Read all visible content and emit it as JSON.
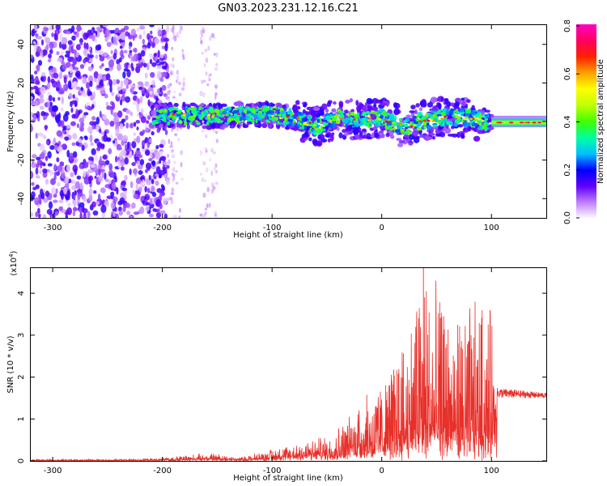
{
  "title": "GN03.2023.231.12.16.C21",
  "colors": {
    "snr_line": "#e8302a",
    "spec_bg": "#ffffff",
    "spec_dense": "#7010e0"
  },
  "chart_data": [
    {
      "type": "heatmap",
      "panel": "spectrogram",
      "xlabel": "Height of straight line (km)",
      "ylabel": "Frequency (Hz)",
      "xlim": [
        -320,
        150
      ],
      "ylim": [
        -50,
        50
      ],
      "xticks": [
        -300,
        -200,
        -100,
        0,
        100
      ],
      "yticks": [
        -40,
        -20,
        0,
        20,
        40
      ],
      "grid": false,
      "description_regions": [
        {
          "x_range": [
            -320,
            -195
          ],
          "freq_range": [
            -50,
            50
          ],
          "amplitude": 0.1
        },
        {
          "x_range": [
            -195,
            -180
          ],
          "freq_range": [
            -50,
            50
          ],
          "amplitude": 0.03
        },
        {
          "x_range": [
            -165,
            -150
          ],
          "freq_range": [
            -50,
            50
          ],
          "amplitude": 0.03
        },
        {
          "x_range": [
            -210,
            100
          ],
          "freq_range": [
            -12,
            12
          ],
          "amplitude": 0.3
        },
        {
          "x_range": [
            100,
            150
          ],
          "freq_range": [
            -3,
            3
          ],
          "amplitude": 0.45
        }
      ],
      "ridge": [
        {
          "x": -205,
          "f": 3
        },
        {
          "x": -170,
          "f": 3
        },
        {
          "x": -140,
          "f": 3
        },
        {
          "x": -110,
          "f": 4
        },
        {
          "x": -80,
          "f": 2
        },
        {
          "x": -60,
          "f": -3
        },
        {
          "x": -40,
          "f": 2
        },
        {
          "x": -20,
          "f": 1
        },
        {
          "x": 0,
          "f": 2
        },
        {
          "x": 20,
          "f": -3
        },
        {
          "x": 40,
          "f": 1
        },
        {
          "x": 60,
          "f": 2
        },
        {
          "x": 80,
          "f": 2
        },
        {
          "x": 100,
          "f": -1
        },
        {
          "x": 125,
          "f": -1
        },
        {
          "x": 150,
          "f": 0
        }
      ],
      "colorbar": {
        "label": "Normalized spectral amplitude",
        "range": [
          0.0,
          0.8
        ],
        "ticks": [
          "0.0",
          "0.2",
          "0.4",
          "0.6",
          "0.8"
        ],
        "colormap": [
          "#ffffff",
          "#c080ff",
          "#6000ff",
          "#0000ff",
          "#00c0ff",
          "#00ffa0",
          "#40ff00",
          "#c0ff00",
          "#ffff00",
          "#ffa000",
          "#ff2000",
          "#ff0060",
          "#ff00c0"
        ]
      }
    },
    {
      "type": "line",
      "panel": "snr",
      "xlabel": "Height of straight line (km)",
      "ylabel": "SNR (10 * v/v)",
      "multiplier": "(x10",
      "multiplier_exp": "4",
      "multiplier_close": ")",
      "xlim": [
        -320,
        150
      ],
      "ylim": [
        0,
        4.6
      ],
      "xticks": [
        -300,
        -200,
        -100,
        0,
        100
      ],
      "yticks": [
        0,
        1,
        2,
        3,
        4
      ],
      "grid": false,
      "envelope": [
        {
          "x": -320,
          "base": 0.01,
          "peak": 0.04
        },
        {
          "x": -250,
          "base": 0.01,
          "peak": 0.04
        },
        {
          "x": -200,
          "base": 0.02,
          "peak": 0.06
        },
        {
          "x": -170,
          "base": 0.05,
          "peak": 0.15
        },
        {
          "x": -150,
          "base": 0.06,
          "peak": 0.16
        },
        {
          "x": -130,
          "base": 0.03,
          "peak": 0.08
        },
        {
          "x": -110,
          "base": 0.05,
          "peak": 0.2
        },
        {
          "x": -90,
          "base": 0.1,
          "peak": 0.35
        },
        {
          "x": -70,
          "base": 0.15,
          "peak": 0.45
        },
        {
          "x": -50,
          "base": 0.2,
          "peak": 0.55
        },
        {
          "x": -30,
          "base": 0.3,
          "peak": 1.0
        },
        {
          "x": -20,
          "base": 0.4,
          "peak": 1.5
        },
        {
          "x": 0,
          "base": 0.5,
          "peak": 1.8
        },
        {
          "x": 20,
          "base": 0.6,
          "peak": 2.8
        },
        {
          "x": 38,
          "base": 0.7,
          "peak": 4.6
        },
        {
          "x": 60,
          "base": 0.7,
          "peak": 3.4
        },
        {
          "x": 80,
          "base": 0.7,
          "peak": 3.6
        },
        {
          "x": 100,
          "base": 0.8,
          "peak": 3.5
        },
        {
          "x": 105,
          "base": 1.5,
          "peak": 1.7
        },
        {
          "x": 150,
          "base": 1.5,
          "peak": 1.6
        }
      ]
    }
  ]
}
